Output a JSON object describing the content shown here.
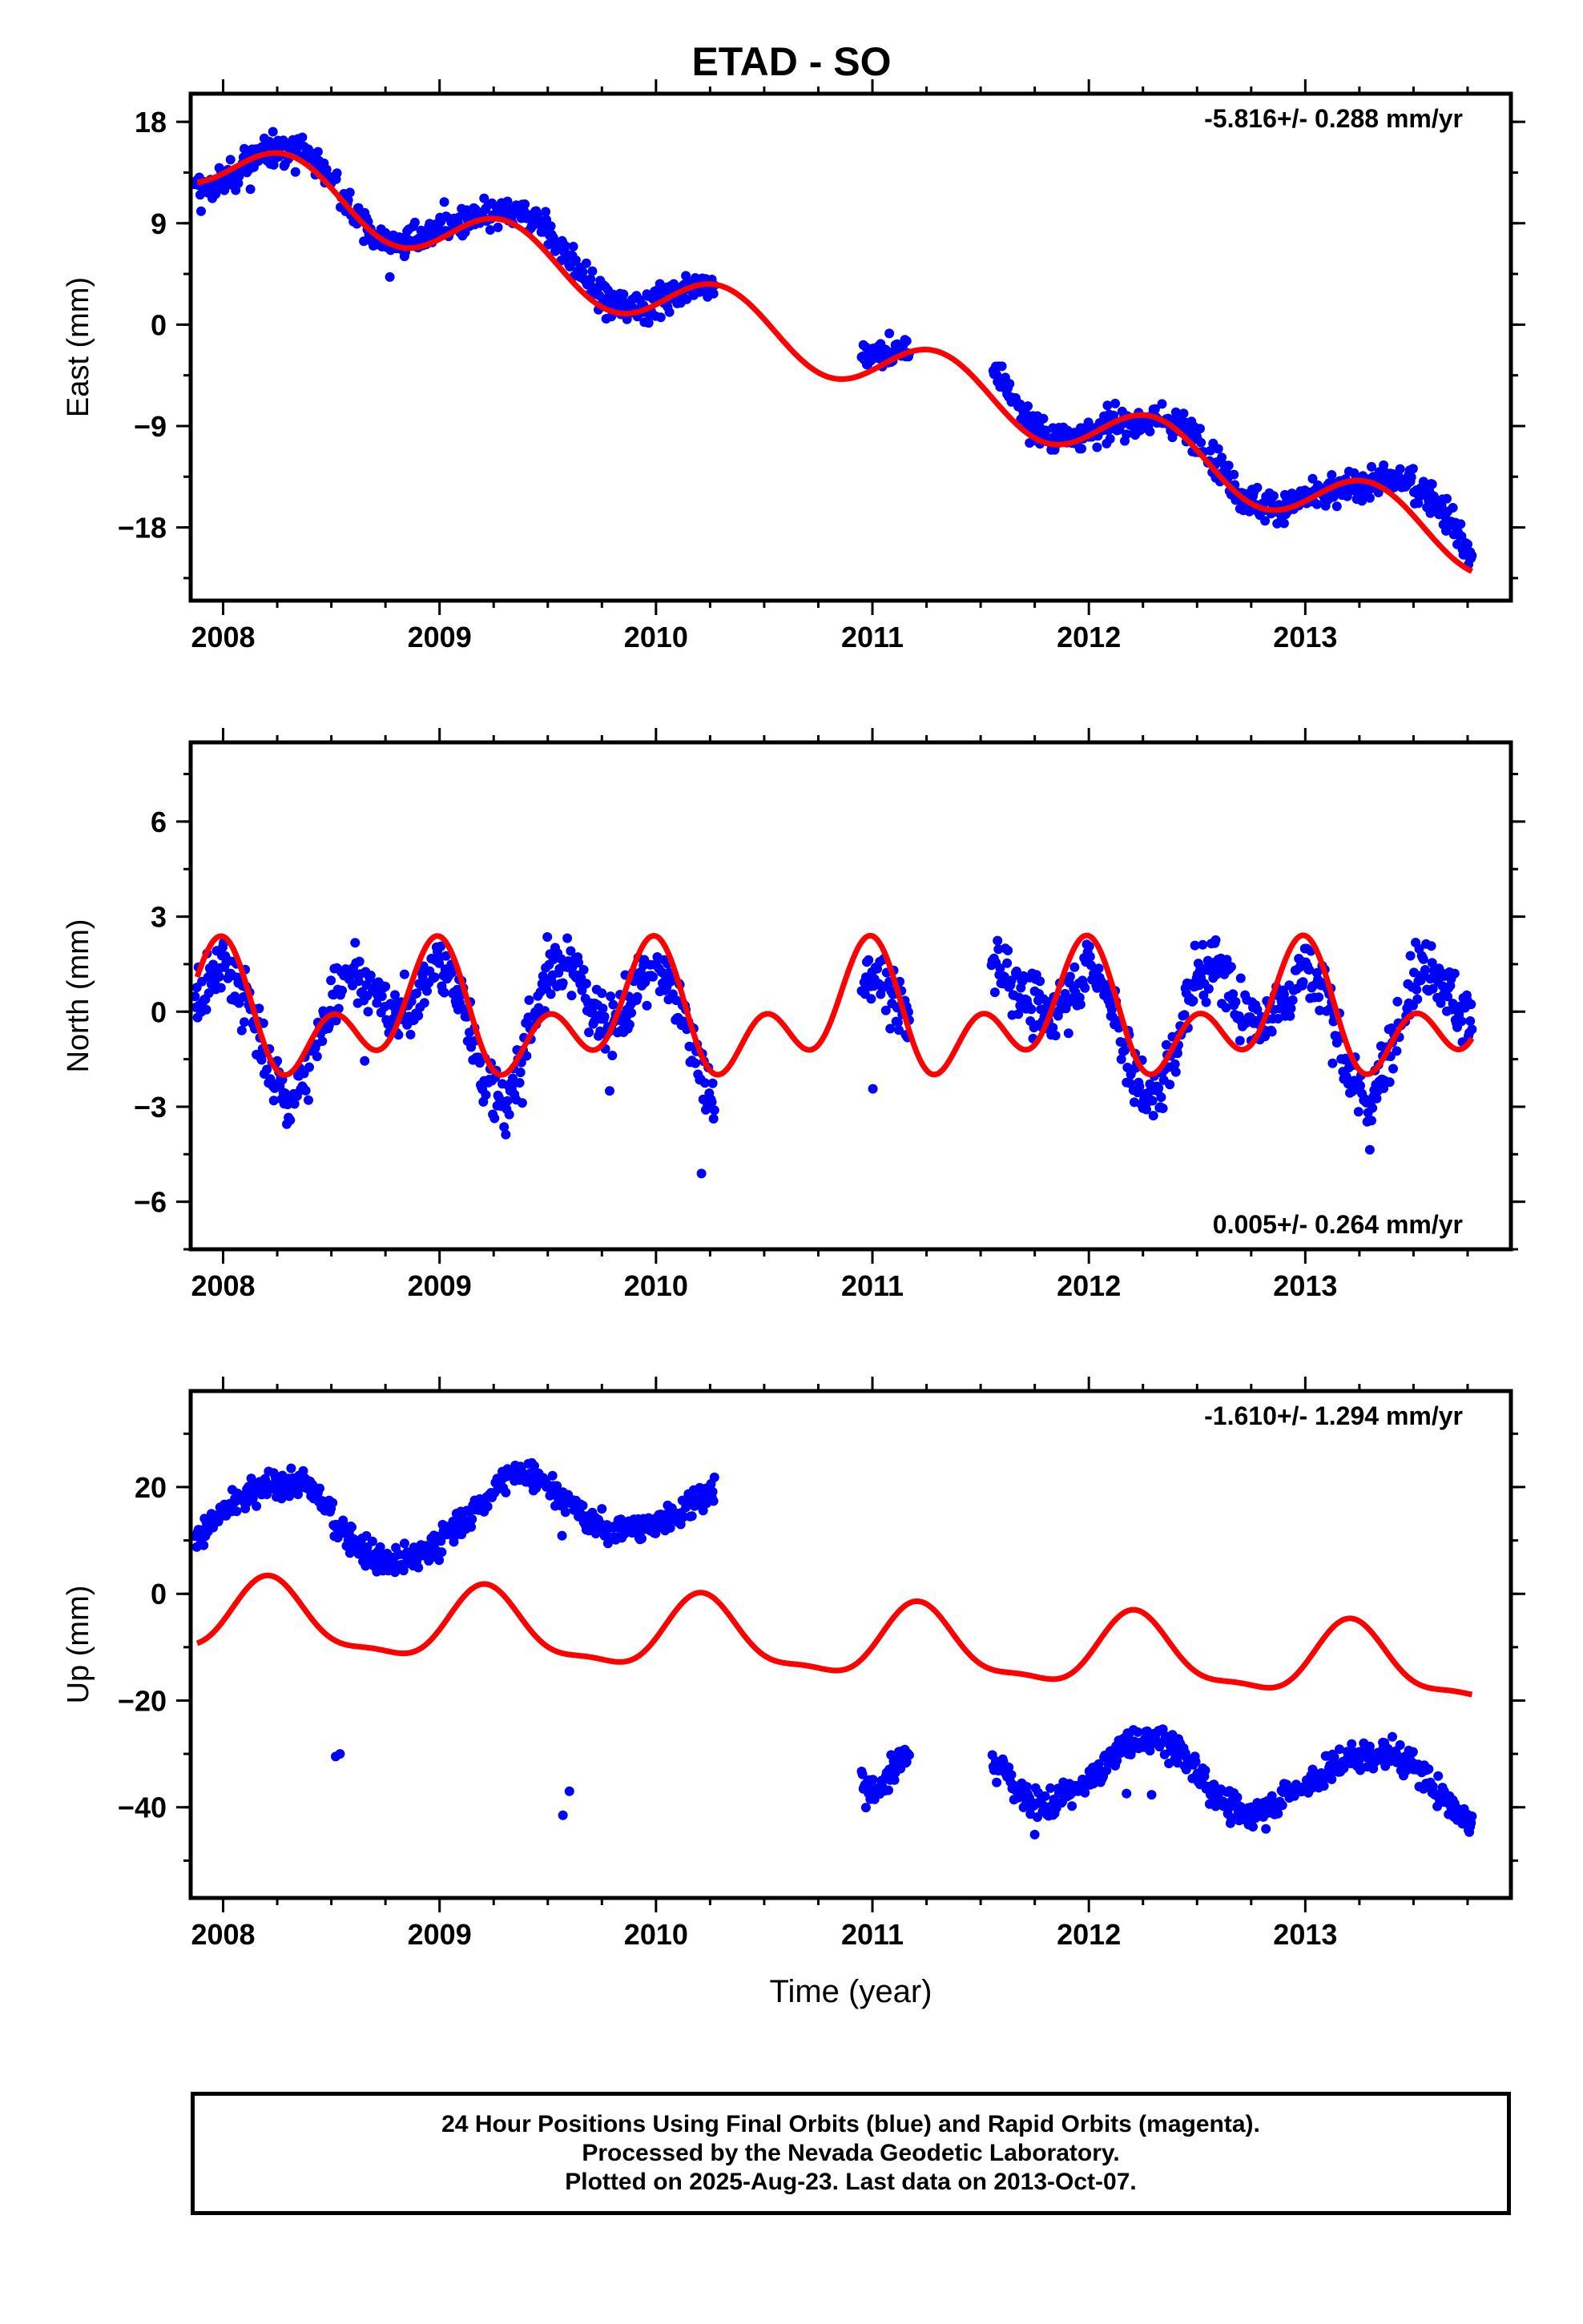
{
  "title": "ETAD - SO",
  "chart_data": [
    {
      "type": "scatter",
      "panel": "east",
      "ylabel": "East (mm)",
      "xlabel": "",
      "xlim": [
        2007.85,
        2013.95
      ],
      "ylim": [
        -24.5,
        20.5
      ],
      "x_ticks": [
        2008,
        2009,
        2010,
        2011,
        2012,
        2013
      ],
      "y_ticks": [
        18,
        9,
        0,
        -9,
        -18
      ],
      "y_tick_labels": [
        "18",
        "9",
        "0",
        "-9",
        "-18"
      ],
      "annotation": "-5.816+/- 0.288 mm/yr",
      "annotation_position": "top-right",
      "series": [
        {
          "name": "Final Orbits",
          "color": "#0000ff",
          "marker": "dot",
          "segments": [
            [
              2007.87,
              2010.27
            ],
            [
              2010.95,
              2011.17
            ],
            [
              2011.55,
              2013.77
            ]
          ],
          "x": [
            2007.9,
            2008.0,
            2008.1,
            2008.2,
            2008.3,
            2008.4,
            2008.5,
            2008.6,
            2008.7,
            2008.8,
            2008.9,
            2009.0,
            2009.1,
            2009.2,
            2009.3,
            2009.4,
            2009.5,
            2009.6,
            2009.7,
            2009.8,
            2009.9,
            2010.0,
            2010.1,
            2010.2,
            2010.27,
            2011.0,
            2011.1,
            2011.15,
            2011.6,
            2011.7,
            2011.8,
            2011.9,
            2012.0,
            2012.1,
            2012.2,
            2012.3,
            2012.4,
            2012.5,
            2012.6,
            2012.7,
            2012.8,
            2012.9,
            2013.0,
            2013.1,
            2013.2,
            2013.3,
            2013.4,
            2013.5,
            2013.6,
            2013.7,
            2013.76
          ],
          "y": [
            12.0,
            12.5,
            14.0,
            15.5,
            15.8,
            15.0,
            13.0,
            10.0,
            8.0,
            7.2,
            7.5,
            8.5,
            9.0,
            9.5,
            9.8,
            9.7,
            8.5,
            6.0,
            3.5,
            1.8,
            1.5,
            2.0,
            3.0,
            3.5,
            3.5,
            -3.0,
            -2.5,
            -2.2,
            -5.0,
            -8.0,
            -10.0,
            -10.0,
            -9.5,
            -9.0,
            -8.7,
            -8.5,
            -8.8,
            -10.0,
            -12.5,
            -15.0,
            -16.0,
            -16.0,
            -15.5,
            -15.0,
            -14.5,
            -14.0,
            -13.8,
            -14.0,
            -15.5,
            -18.0,
            -20.5
          ],
          "spread_mm": 1.8
        },
        {
          "name": "Model",
          "color": "#ff0000",
          "type": "line",
          "model": {
            "ref_year": 2010.8,
            "offset": -2.07,
            "rate": -5.816,
            "annual_sin": 0,
            "annual_cos": 0,
            "semiannual_sin": 0,
            "semiannual_cos": 0,
            "annual_amp": 2.6,
            "annual_phase_year": 2008.3
          }
        }
      ]
    },
    {
      "type": "scatter",
      "panel": "north",
      "ylabel": "North (mm)",
      "xlabel": "",
      "xlim": [
        2007.85,
        2013.95
      ],
      "ylim": [
        -7.5,
        8.5
      ],
      "x_ticks": [
        2008,
        2009,
        2010,
        2011,
        2012,
        2013
      ],
      "y_ticks": [
        6,
        3,
        0,
        -3,
        -6
      ],
      "y_tick_labels": [
        "6",
        "3",
        "0",
        "-3",
        "-6"
      ],
      "annotation": "0.005+/- 0.264 mm/yr",
      "annotation_position": "bottom-right",
      "series": [
        {
          "name": "Final Orbits",
          "color": "#0000ff",
          "marker": "dot",
          "segments": [
            [
              2007.87,
              2010.27
            ],
            [
              2010.95,
              2011.17
            ],
            [
              2011.55,
              2013.77
            ]
          ],
          "x": [
            2007.9,
            2008.0,
            2008.1,
            2008.2,
            2008.3,
            2008.4,
            2008.5,
            2008.6,
            2008.7,
            2008.8,
            2008.9,
            2009.0,
            2009.1,
            2009.2,
            2009.3,
            2009.4,
            2009.5,
            2009.6,
            2009.7,
            2009.8,
            2009.9,
            2010.0,
            2010.1,
            2010.2,
            2010.27,
            2011.0,
            2011.1,
            2011.15,
            2011.6,
            2011.7,
            2011.8,
            2011.9,
            2012.0,
            2012.1,
            2012.2,
            2012.3,
            2012.4,
            2012.5,
            2012.6,
            2012.7,
            2012.8,
            2012.9,
            2013.0,
            2013.1,
            2013.2,
            2013.3,
            2013.4,
            2013.5,
            2013.6,
            2013.7,
            2013.76
          ],
          "y": [
            0.5,
            1.6,
            0.5,
            -1.5,
            -3.0,
            -2.0,
            0.5,
            1.6,
            0.5,
            -0.3,
            0.5,
            1.5,
            0.5,
            -2.0,
            -3.0,
            -1.0,
            1.2,
            1.5,
            0.2,
            -0.5,
            0.5,
            1.4,
            0.5,
            -2.0,
            -3.0,
            1.2,
            0.5,
            -0.2,
            1.6,
            0.5,
            -0.4,
            0.5,
            1.4,
            0.5,
            -2.0,
            -3.0,
            -1.0,
            1.2,
            1.5,
            0.2,
            -0.5,
            0.5,
            1.4,
            0.5,
            -2.0,
            -3.0,
            -1.0,
            1.2,
            1.5,
            0.2,
            -0.3
          ],
          "spread_mm": 1.2
        },
        {
          "name": "Model",
          "color": "#ff0000",
          "type": "line",
          "model": {
            "ref_year": 2010.8,
            "offset": -0.15,
            "rate": 0.005,
            "annual_amp": 1.3,
            "annual_phase_year": 2007.95,
            "semiannual_amp": 1.3,
            "semiannual_phase_year": 2008.0
          }
        }
      ]
    },
    {
      "type": "scatter",
      "panel": "up",
      "ylabel": "Up (mm)",
      "xlabel": "Time (year)",
      "xlim": [
        2007.85,
        2013.95
      ],
      "ylim": [
        -57,
        38
      ],
      "x_ticks": [
        2008,
        2009,
        2010,
        2011,
        2012,
        2013
      ],
      "y_ticks": [
        20,
        0,
        -20,
        -40
      ],
      "y_tick_labels": [
        "20",
        "0",
        "-20",
        "-40"
      ],
      "annotation": "-1.610+/- 1.294 mm/yr",
      "annotation_position": "top-right",
      "series": [
        {
          "name": "Final Orbits",
          "color": "#0000ff",
          "marker": "dot",
          "segments": [
            [
              2007.87,
              2010.27
            ],
            [
              2010.95,
              2011.17
            ],
            [
              2011.55,
              2013.77
            ]
          ],
          "x": [
            2007.9,
            2008.0,
            2008.1,
            2008.2,
            2008.3,
            2008.4,
            2008.5,
            2008.6,
            2008.7,
            2008.8,
            2008.9,
            2009.0,
            2009.1,
            2009.2,
            2009.3,
            2009.4,
            2009.5,
            2009.6,
            2009.7,
            2009.8,
            2009.9,
            2010.0,
            2010.1,
            2010.2,
            2010.27,
            2011.0,
            2011.1,
            2011.15,
            2011.6,
            2011.7,
            2011.8,
            2011.9,
            2012.0,
            2012.1,
            2012.2,
            2012.3,
            2012.4,
            2012.5,
            2012.6,
            2012.7,
            2012.8,
            2012.9,
            2013.0,
            2013.1,
            2013.2,
            2013.3,
            2013.4,
            2013.5,
            2013.6,
            2013.7,
            2013.76
          ],
          "y": [
            12,
            15,
            18,
            20,
            21,
            20,
            15,
            10,
            7,
            6,
            7,
            10,
            13,
            17,
            21,
            23,
            21,
            17,
            13,
            12,
            12,
            13,
            15,
            18,
            20,
            -38,
            -33,
            -30,
            -33,
            -38,
            -40,
            -38,
            -35,
            -31,
            -28,
            -27,
            -29,
            -33,
            -38,
            -42,
            -41,
            -38,
            -36,
            -33,
            -31,
            -30,
            -30,
            -32,
            -36,
            -41,
            -43
          ],
          "spread_mm": 3.5,
          "outliers": [
            [
              2008.52,
              -30.5
            ],
            [
              2008.54,
              -30.0
            ],
            [
              2009.57,
              -41.5
            ],
            [
              2009.6,
              -37.0
            ]
          ]
        },
        {
          "name": "Model",
          "color": "#ff0000",
          "type": "line",
          "model": {
            "ref_year": 2010.8,
            "offset": -9.2,
            "rate": -1.61,
            "annual_amp": 6.5,
            "annual_phase_year": 2008.22,
            "semiannual_amp": 2.0,
            "semiannual_phase_year": 2008.2
          }
        }
      ]
    }
  ],
  "caption": {
    "line1": "24 Hour Positions Using Final Orbits (blue) and Rapid Orbits (magenta).",
    "line2": "Processed by the Nevada Geodetic Laboratory.",
    "line3": "Plotted on 2025-Aug-23. Last data on 2013-Oct-07."
  }
}
